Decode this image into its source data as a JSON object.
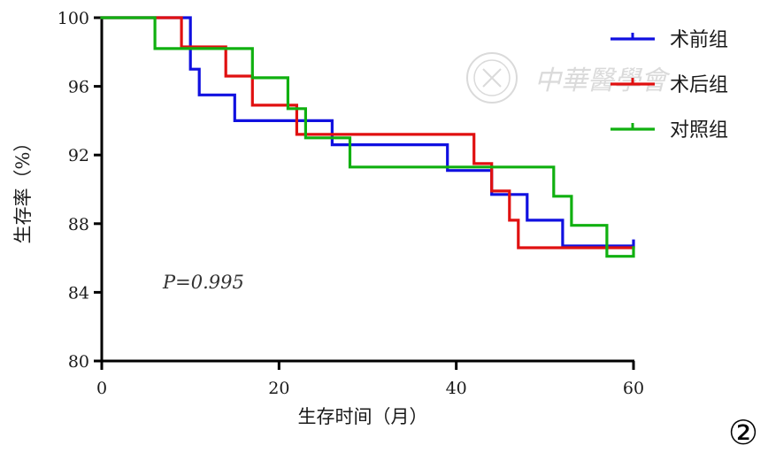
{
  "chart_data": {
    "type": "line",
    "step": true,
    "title": "",
    "xlabel": "生存时间（月）",
    "ylabel": "生存率（%）",
    "xlim": [
      0,
      60
    ],
    "ylim": [
      80,
      100
    ],
    "x_ticks": [
      "0",
      "20",
      "40",
      "60"
    ],
    "y_ticks": [
      "80",
      "84",
      "88",
      "92",
      "96",
      "100"
    ],
    "legend_position": "top-right",
    "annotation": "P=0.995",
    "series": [
      {
        "name": "术前组",
        "color": "#1010e0",
        "points": [
          [
            0,
            100
          ],
          [
            10,
            100
          ],
          [
            10,
            97
          ],
          [
            11,
            97
          ],
          [
            11,
            95.5
          ],
          [
            15,
            95.5
          ],
          [
            15,
            94
          ],
          [
            26,
            94
          ],
          [
            26,
            92.6
          ],
          [
            39,
            92.6
          ],
          [
            39,
            91.1
          ],
          [
            44,
            91.1
          ],
          [
            44,
            89.7
          ],
          [
            48,
            89.7
          ],
          [
            48,
            88.2
          ],
          [
            52,
            88.2
          ],
          [
            52,
            86.7
          ],
          [
            60,
            86.7
          ],
          [
            60,
            87
          ]
        ]
      },
      {
        "name": "术后组",
        "color": "#e01010",
        "points": [
          [
            0,
            100
          ],
          [
            9,
            100
          ],
          [
            9,
            98.3
          ],
          [
            14,
            98.3
          ],
          [
            14,
            96.6
          ],
          [
            17,
            96.6
          ],
          [
            17,
            94.9
          ],
          [
            21,
            94.9
          ],
          [
            21,
            94.9
          ],
          [
            22,
            94.9
          ],
          [
            22,
            93.2
          ],
          [
            42,
            93.2
          ],
          [
            42,
            91.5
          ],
          [
            44,
            91.5
          ],
          [
            44,
            89.9
          ],
          [
            46,
            89.9
          ],
          [
            46,
            88.2
          ],
          [
            47,
            88.2
          ],
          [
            47,
            86.6
          ],
          [
            60,
            86.6
          ]
        ]
      },
      {
        "name": "对照组",
        "color": "#10b010",
        "points": [
          [
            0,
            100
          ],
          [
            6,
            100
          ],
          [
            6,
            98.2
          ],
          [
            17,
            98.2
          ],
          [
            17,
            96.5
          ],
          [
            21,
            96.5
          ],
          [
            21,
            94.7
          ],
          [
            23,
            94.7
          ],
          [
            23,
            93
          ],
          [
            28,
            93
          ],
          [
            28,
            91.3
          ],
          [
            51,
            91.3
          ],
          [
            51,
            89.6
          ],
          [
            53,
            89.6
          ],
          [
            53,
            87.9
          ],
          [
            57,
            87.9
          ],
          [
            57,
            86.1
          ],
          [
            60,
            86.1
          ],
          [
            60,
            86.6
          ]
        ]
      }
    ]
  },
  "watermark": {
    "text": "中華醫學會"
  },
  "figure_number": "②"
}
